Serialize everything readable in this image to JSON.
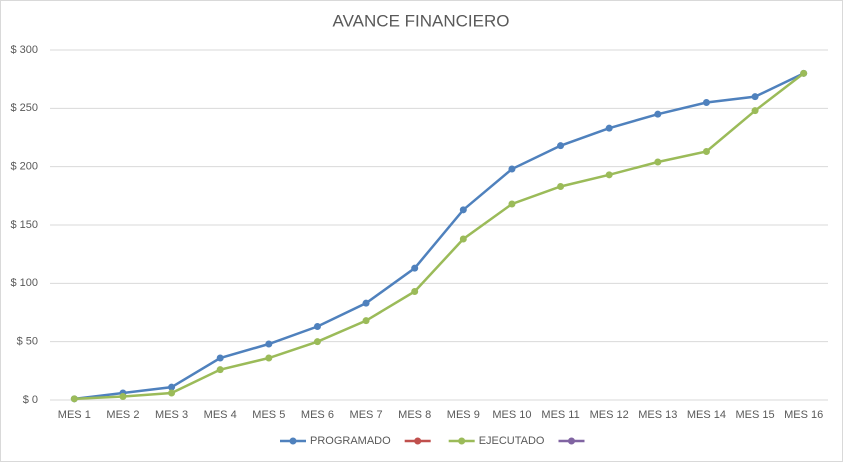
{
  "chart_data": {
    "type": "line",
    "title": "AVANCE FINANCIERO",
    "categories": [
      "MES 1",
      "MES 2",
      "MES 3",
      "MES 4",
      "MES 5",
      "MES 6",
      "MES 7",
      "MES 8",
      "MES 9",
      "MES 10",
      "MES 11",
      "MES 12",
      "MES 13",
      "MES 14",
      "MES 15",
      "MES 16"
    ],
    "series": [
      {
        "name": "PROGRAMADO",
        "color": "#4f81bd",
        "values": [
          1,
          6,
          11,
          36,
          48,
          63,
          83,
          113,
          163,
          198,
          218,
          233,
          245,
          255,
          260,
          280
        ]
      },
      {
        "color": "#c0504d",
        "values": [
          null,
          null,
          null,
          null,
          null,
          null,
          null,
          null,
          null,
          null,
          null,
          null,
          null,
          null,
          null,
          null
        ]
      },
      {
        "name": "EJECUTADO",
        "color": "#9bbb59",
        "values": [
          1,
          3,
          6,
          26,
          36,
          50,
          68,
          93,
          138,
          168,
          183,
          193,
          204,
          213,
          248,
          280
        ]
      },
      {
        "color": "#8064a2",
        "values": [
          null,
          null,
          null,
          null,
          null,
          null,
          null,
          null,
          null,
          null,
          null,
          null,
          null,
          null,
          null,
          null
        ]
      }
    ],
    "ylim": [
      0,
      300
    ],
    "yticks": [
      {
        "value": 0,
        "label": "$ 0"
      },
      {
        "value": 50,
        "label": "$ 50"
      },
      {
        "value": 100,
        "label": "$ 100"
      },
      {
        "value": 150,
        "label": "$ 150"
      },
      {
        "value": 200,
        "label": "$ 200"
      },
      {
        "value": 250,
        "label": "$ 250"
      },
      {
        "value": 300,
        "label": "$ 300"
      }
    ],
    "grid": true,
    "legend": "bottom"
  }
}
